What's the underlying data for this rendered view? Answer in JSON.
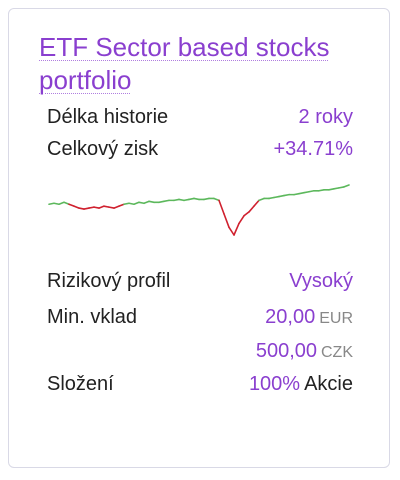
{
  "card": {
    "title": "ETF Sector based stocks portfolio",
    "history_label": "Délka historie",
    "history_value": "2 roky",
    "gain_label": "Celkový zisk",
    "gain_value": "+34.71%",
    "risk_label": "Rizikový profil",
    "risk_value": "Vysoký",
    "min_label": "Min. vklad",
    "min_eur_value": "20,00",
    "min_eur_unit": "EUR",
    "min_czk_value": "500,00",
    "min_czk_unit": "CZK",
    "comp_label": "Složení",
    "comp_value": "100%",
    "comp_suffix": "Akcie"
  },
  "colors": {
    "accent": "#8a3fcf",
    "up": "#5cb85c",
    "down": "#d0212f"
  },
  "chart_data": {
    "type": "line",
    "x": [
      0,
      1,
      2,
      3,
      4,
      5,
      6,
      7,
      8,
      9,
      10,
      11,
      12,
      13,
      14,
      15,
      16,
      17,
      18,
      19,
      20,
      21,
      22,
      23,
      24,
      25,
      26,
      27,
      28,
      29,
      30,
      31,
      32,
      33,
      34,
      35,
      36,
      37,
      38,
      39,
      40,
      41,
      42,
      43,
      44,
      45,
      46,
      47,
      48,
      49,
      50,
      51,
      52,
      53,
      54,
      55,
      56,
      57,
      58,
      59,
      60
    ],
    "values": [
      0,
      0.5,
      0,
      1,
      0,
      -1,
      -2,
      -2.5,
      -2,
      -1.5,
      -2,
      -1,
      -1.5,
      -2,
      -1,
      0,
      0.5,
      0,
      1,
      0.5,
      1.5,
      1,
      1,
      1.5,
      2,
      2,
      2.5,
      2,
      2.5,
      3,
      2.5,
      2.5,
      3,
      3,
      2,
      -5,
      -12,
      -16,
      -10,
      -6,
      -4,
      -1,
      2,
      3,
      3,
      3.5,
      4,
      4.5,
      5,
      5,
      5.5,
      6,
      6.5,
      7,
      7,
      7.5,
      7.5,
      8,
      8.5,
      9,
      10
    ]
  }
}
